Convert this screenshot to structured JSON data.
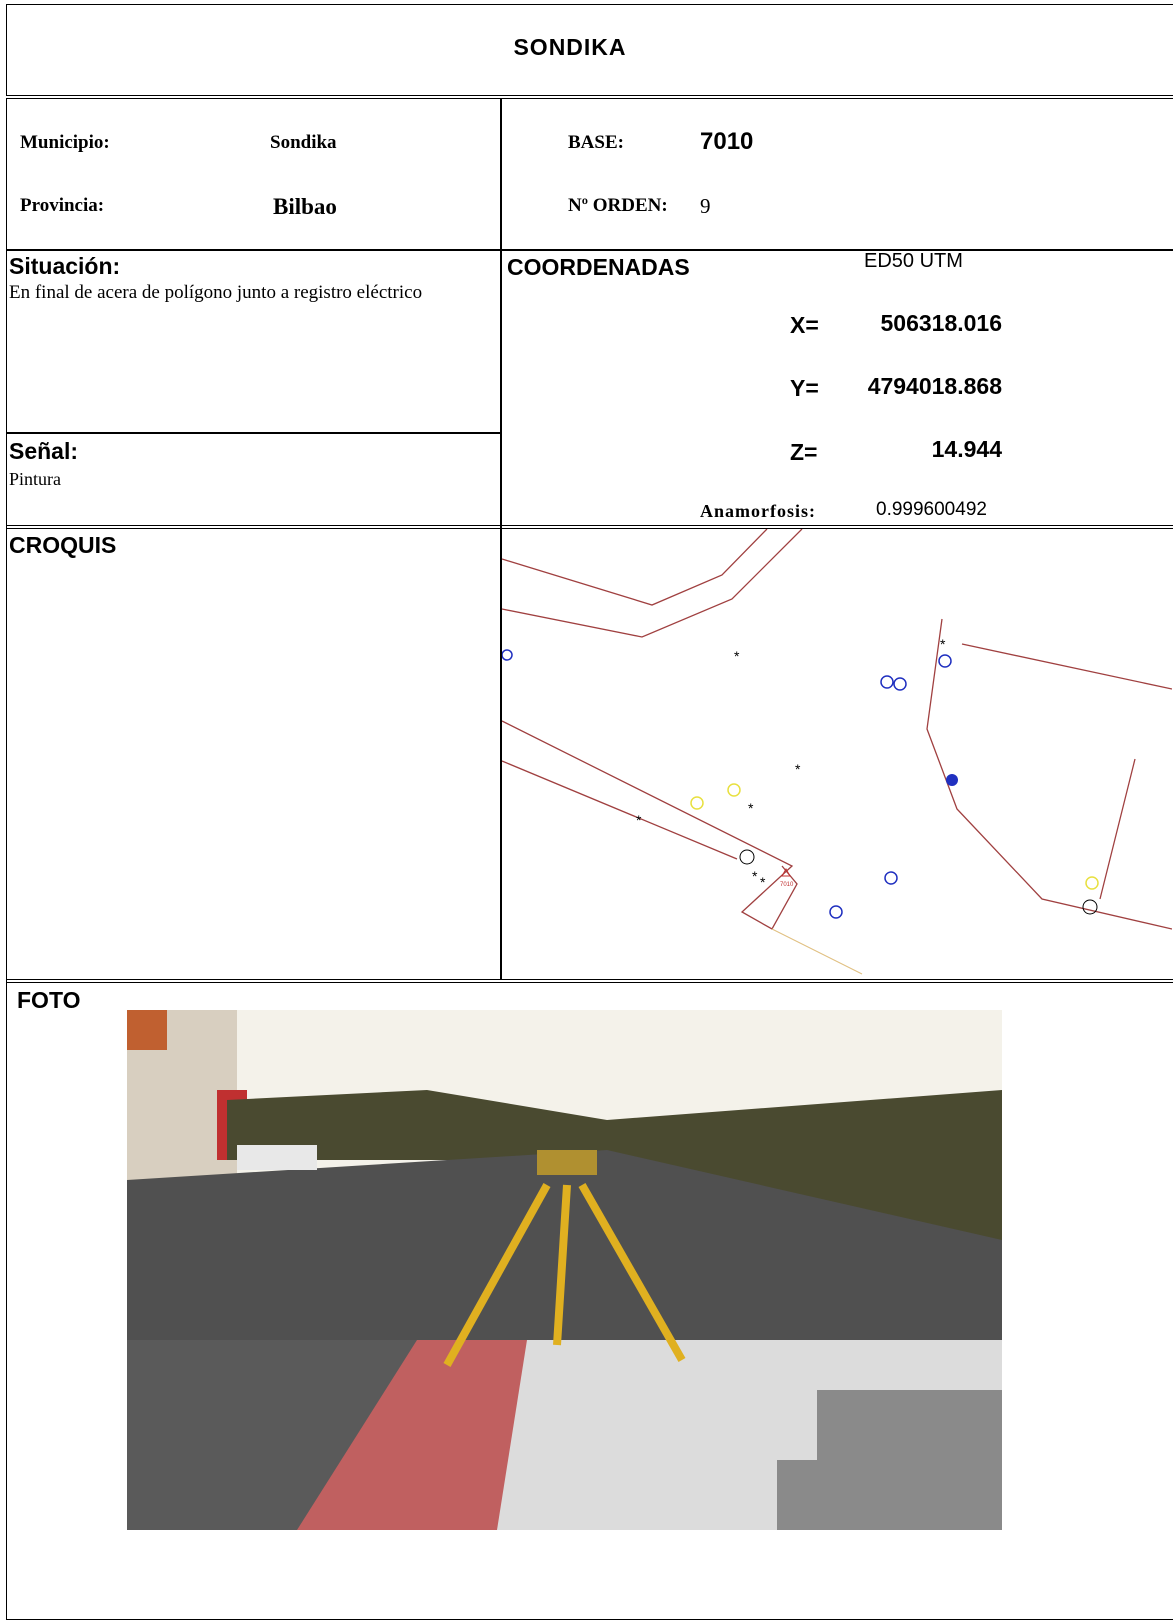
{
  "title": "SONDIKA",
  "info": {
    "municipio_label": "Municipio:",
    "municipio": "Sondika",
    "provincia_label": "Provincia:",
    "provincia": "Bilbao",
    "base_label": "BASE:",
    "base": "7010",
    "orden_label": "Nº ORDEN:",
    "orden": "9"
  },
  "situacion": {
    "label": "Situación:",
    "text": "En final de acera de polígono junto a registro eléctrico"
  },
  "senal": {
    "label": "Señal:",
    "text": "Pintura"
  },
  "coordenadas": {
    "label": "COORDENADAS",
    "system": "ED50 UTM",
    "x_label": "X=",
    "x": "506318.016",
    "y_label": "Y=",
    "y": "4794018.868",
    "z_label": "Z=",
    "z": "14.944",
    "anamorfosis_label": "Anamorfosis:",
    "anamorfosis": "0.999600492"
  },
  "croquis": {
    "label": "CROQUIS",
    "marker": "7010"
  },
  "foto": {
    "label": "FOTO"
  }
}
